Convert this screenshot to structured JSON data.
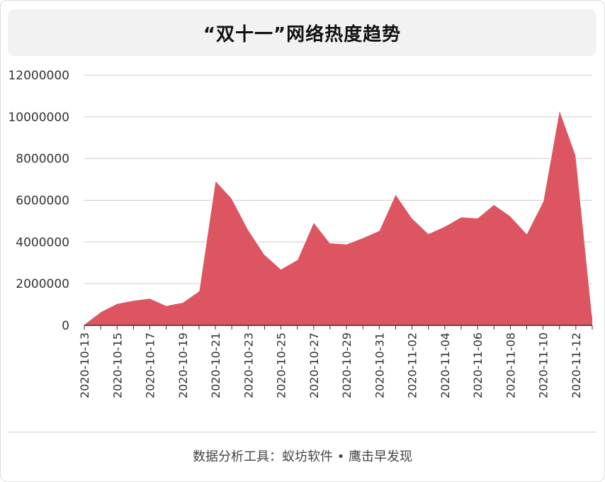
{
  "title": "“双十一”网络热度趋势",
  "footer": "数据分析工具：蚁坊软件 • 鹰击早发现",
  "colors": {
    "area_fill": "#de5562",
    "area_stroke": "#ffffff",
    "grid": "#cccccc",
    "axis": "#333333"
  },
  "chart_data": {
    "type": "area",
    "title": "“双十一”网络热度趋势",
    "xlabel": "",
    "ylabel": "",
    "ylim": [
      0,
      12000000
    ],
    "yticks": [
      0,
      2000000,
      4000000,
      6000000,
      8000000,
      10000000,
      12000000
    ],
    "grid": true,
    "legend": "none",
    "x": [
      "2020-10-13",
      "2020-10-14",
      "2020-10-15",
      "2020-10-16",
      "2020-10-17",
      "2020-10-18",
      "2020-10-19",
      "2020-10-20",
      "2020-10-21",
      "2020-10-22",
      "2020-10-23",
      "2020-10-24",
      "2020-10-25",
      "2020-10-26",
      "2020-10-27",
      "2020-10-28",
      "2020-10-29",
      "2020-10-30",
      "2020-10-31",
      "2020-11-01",
      "2020-11-02",
      "2020-11-03",
      "2020-11-04",
      "2020-11-05",
      "2020-11-06",
      "2020-11-07",
      "2020-11-08",
      "2020-11-09",
      "2020-11-10",
      "2020-11-11",
      "2020-11-12",
      "2020-11-13"
    ],
    "xticklabels": [
      "2020-10-13",
      "2020-10-15",
      "2020-10-17",
      "2020-10-19",
      "2020-10-21",
      "2020-10-23",
      "2020-10-25",
      "2020-10-27",
      "2020-10-29",
      "2020-10-31",
      "2020-11-02",
      "2020-11-04",
      "2020-11-06",
      "2020-11-08",
      "2020-11-10",
      "2020-11-12"
    ],
    "series": [
      {
        "values": [
          50000,
          650000,
          1050000,
          1200000,
          1300000,
          950000,
          1100000,
          1650000,
          6950000,
          6100000,
          4600000,
          3400000,
          2700000,
          3150000,
          4950000,
          3950000,
          3900000,
          4200000,
          4550000,
          6300000,
          5150000,
          4400000,
          4750000,
          5200000,
          5150000,
          5800000,
          5250000,
          4400000,
          5950000,
          10350000,
          8150000,
          450000
        ]
      }
    ]
  }
}
